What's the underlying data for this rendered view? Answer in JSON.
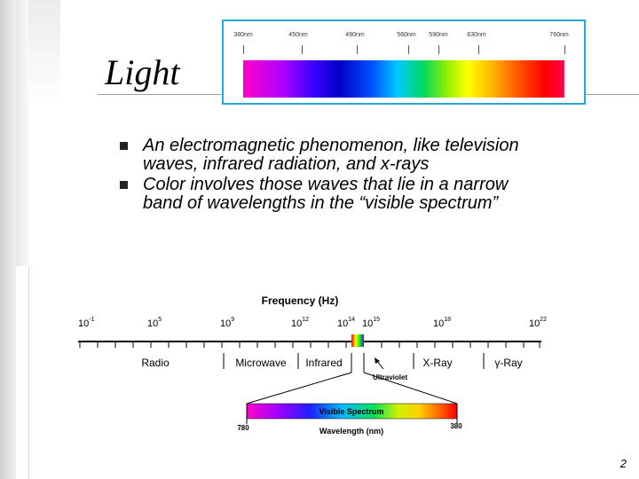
{
  "slide": {
    "title": "Light",
    "page_number": "2",
    "bullets": [
      "An electromagnetic phenomenon, like television waves, infrared radiation, and x-rays",
      "Color involves those waves that lie in a narrow band of wavelengths in the “visible spectrum”"
    ]
  },
  "top_spectrum": {
    "labels": [
      "380nm",
      "450nm",
      "490nm",
      "560nm",
      "590nm",
      "630nm",
      "760nm"
    ]
  },
  "em_diagram": {
    "frequency_title": "Frequency (Hz)",
    "exponents": [
      {
        "base": "10",
        "exp": "-1"
      },
      {
        "base": "10",
        "exp": "5"
      },
      {
        "base": "10",
        "exp": "9"
      },
      {
        "base": "10",
        "exp": "12"
      },
      {
        "base": "10",
        "exp": "14"
      },
      {
        "base": "10",
        "exp": "15"
      },
      {
        "base": "10",
        "exp": "18"
      },
      {
        "base": "10",
        "exp": "22"
      }
    ],
    "bands": [
      "Radio",
      "Microwave",
      "Infrared",
      "X-Ray",
      "γ-Ray"
    ],
    "ultraviolet": "Ultraviolet",
    "visible_title": "Visible Spectrum",
    "wavelength_title": "Wavelength (nm)",
    "wl_left": "780",
    "wl_right": "380"
  }
}
